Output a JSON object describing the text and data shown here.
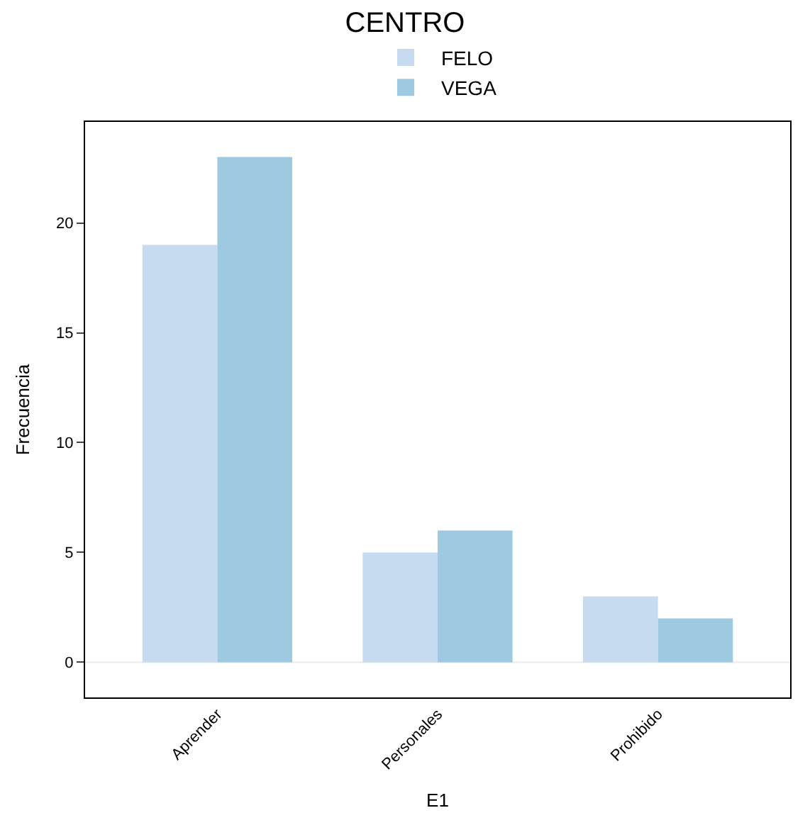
{
  "chart_data": {
    "type": "bar",
    "title": "CENTRO",
    "xlabel": "E1",
    "ylabel": "Frecuencia",
    "categories": [
      "Aprender",
      "Personales",
      "Prohibido"
    ],
    "series": [
      {
        "name": "FELO",
        "color": "#c6dbef",
        "values": [
          19,
          5,
          3
        ]
      },
      {
        "name": "VEGA",
        "color": "#9ecae1",
        "values": [
          23,
          6,
          2
        ]
      }
    ],
    "ylim": [
      -1.6,
      24.6
    ],
    "yticks": [
      0,
      5,
      10,
      15,
      20
    ],
    "grid": false,
    "legend": "top",
    "ref_lines": [
      {
        "axis": "y",
        "value": 0,
        "color": "#ebebeb"
      }
    ]
  }
}
